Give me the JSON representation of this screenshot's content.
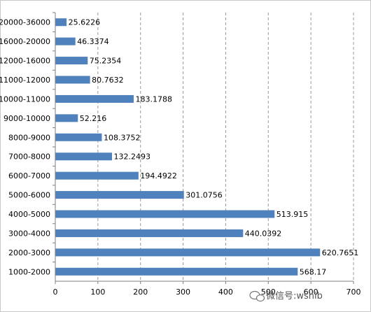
{
  "chart_data": {
    "type": "bar",
    "orientation": "horizontal",
    "categories": [
      "1000-2000",
      "2000-3000",
      "3000-4000",
      "4000-5000",
      "5000-6000",
      "6000-7000",
      "7000-8000",
      "8000-9000",
      "9000-10000",
      "10000-11000",
      "11000-12000",
      "12000-16000",
      "16000-20000",
      "20000-36000"
    ],
    "values": [
      568.17,
      620.7651,
      440.0392,
      513.915,
      301.0756,
      194.4922,
      132.2493,
      108.3752,
      52.216,
      183.1788,
      80.7632,
      75.2354,
      46.3374,
      25.6226
    ],
    "value_labels": [
      "568.17",
      "620.7651",
      "440.0392",
      "513.915",
      "301.0756",
      "194.4922",
      "132.2493",
      "108.3752",
      "52.216",
      "183.1788",
      "80.7632",
      "75.2354",
      "46.3374",
      "25.6226"
    ],
    "x_ticks": [
      "0",
      "100",
      "200",
      "300",
      "400",
      "500",
      "600",
      "700"
    ],
    "xlim": [
      0,
      700
    ],
    "title": "",
    "xlabel": "",
    "ylabel": "",
    "grid": "vertical-dashed",
    "bar_color": "#4f81bd"
  },
  "watermark": {
    "text": "微信号:wshib",
    "icon": "wechat-icon"
  }
}
